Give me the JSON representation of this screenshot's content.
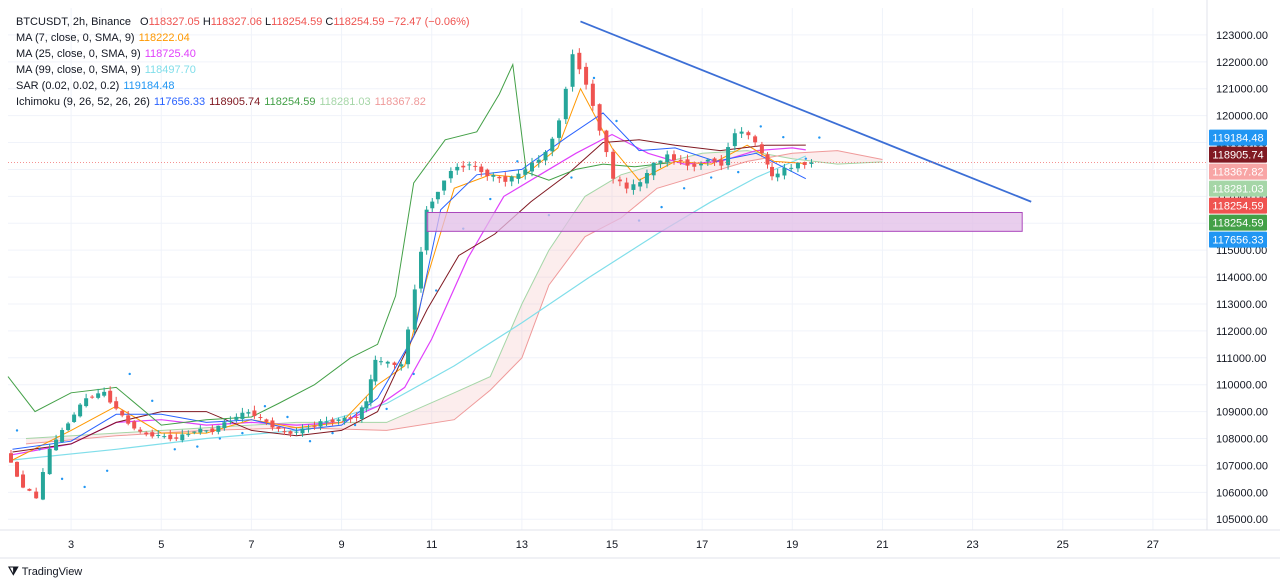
{
  "legend": {
    "symbol_line": {
      "symbol": "BTCUSDT, 2h, Binance",
      "o_label": "O",
      "o": "118327.05",
      "h_label": "H",
      "h": "118327.06",
      "l_label": "L",
      "l": "118254.59",
      "c_label": "C",
      "c": "118254.59",
      "change": "−72.47 (−0.06%)"
    },
    "indicators": [
      {
        "label": "MA (7, close, 0, SMA, 9)",
        "values": [
          "118222.04"
        ],
        "colors": [
          "#ff9800"
        ]
      },
      {
        "label": "MA (25, close, 0, SMA, 9)",
        "values": [
          "118725.40"
        ],
        "colors": [
          "#e040fb"
        ]
      },
      {
        "label": "MA (99, close, 0, SMA, 9)",
        "values": [
          "118497.70"
        ],
        "colors": [
          "#80deea"
        ]
      },
      {
        "label": "SAR (0.02, 0.02, 0.2)",
        "values": [
          "119184.48"
        ],
        "colors": [
          "#2196f3"
        ]
      },
      {
        "label": "Ichimoku (9, 26, 52, 26, 26)",
        "values": [
          "117656.33",
          "118905.74",
          "118254.59",
          "118281.03",
          "118367.82"
        ],
        "colors": [
          "#2962ff",
          "#801922",
          "#43a047",
          "#a5d6a7",
          "#ef9a9a"
        ]
      }
    ]
  },
  "footer": {
    "brand": "TradingView",
    "icon": "tradingview-logo-icon"
  },
  "colors": {
    "up": "#26a69a",
    "down": "#ef5350",
    "trendline": "#3c6fd6",
    "zone_fill": "#e1bee7",
    "zone_stroke": "#ab47bc"
  },
  "chart_data": {
    "type": "candlestick",
    "title": "BTCUSDT, 2h, Binance",
    "xlabel": "",
    "ylabel": "",
    "x_ticks": [
      "3",
      "5",
      "7",
      "9",
      "11",
      "13",
      "15",
      "17",
      "19",
      "21",
      "23",
      "25",
      "27"
    ],
    "y_ticks": [
      "105000.00",
      "106000.00",
      "107000.00",
      "108000.00",
      "109000.00",
      "110000.00",
      "111000.00",
      "112000.00",
      "113000.00",
      "114000.00",
      "115000.00",
      "116000.00",
      "117000.00",
      "118000.00",
      "119000.00",
      "120000.00",
      "121000.00",
      "122000.00",
      "123000.00"
    ],
    "ylim": [
      104600,
      124000
    ],
    "xlim": [
      1.6,
      28.2
    ],
    "price_labels": [
      {
        "value": "119184.48",
        "price": 119184.48,
        "color": "#2196f3"
      },
      {
        "value": "118905.74",
        "price": 118905.74,
        "color": "#801922"
      },
      {
        "value": "118367.82",
        "price": 118367.82,
        "color": "#f8a5a5"
      },
      {
        "value": "118281.03",
        "price": 118281.03,
        "color": "#a5d6a7"
      },
      {
        "value": "118254.59",
        "price": 118254.59,
        "color": "#ef5350"
      },
      {
        "value": "118254.59",
        "price": 118254.59,
        "color": "#43a047"
      },
      {
        "value": "117656.33",
        "price": 117656.33,
        "color": "#2196f3"
      }
    ],
    "trendline": {
      "x1": 14.3,
      "y1": 123500,
      "x2": 24.3,
      "y2": 116800
    },
    "zone": {
      "x1": 10.9,
      "x2": 24.1,
      "y_top": 116400,
      "y_bottom": 115700
    },
    "price_series": [
      [
        1.6,
        107500
      ],
      [
        2.0,
        106200
      ],
      [
        2.3,
        105800
      ],
      [
        2.6,
        107600
      ],
      [
        3.0,
        108600
      ],
      [
        3.4,
        109500
      ],
      [
        3.8,
        109700
      ],
      [
        4.2,
        108800
      ],
      [
        4.6,
        108200
      ],
      [
        5.0,
        108100
      ],
      [
        5.4,
        108000
      ],
      [
        5.8,
        108300
      ],
      [
        6.2,
        108300
      ],
      [
        6.6,
        108700
      ],
      [
        7.0,
        109000
      ],
      [
        7.4,
        108600
      ],
      [
        7.8,
        108200
      ],
      [
        8.2,
        108300
      ],
      [
        8.6,
        108600
      ],
      [
        9.0,
        108700
      ],
      [
        9.4,
        108800
      ],
      [
        9.6,
        109400
      ],
      [
        9.8,
        110900
      ],
      [
        10.1,
        110800
      ],
      [
        10.4,
        110700
      ],
      [
        10.7,
        113500
      ],
      [
        10.95,
        116500
      ],
      [
        11.2,
        117200
      ],
      [
        11.5,
        118000
      ],
      [
        11.9,
        118200
      ],
      [
        12.3,
        117800
      ],
      [
        12.7,
        117600
      ],
      [
        13.0,
        117800
      ],
      [
        13.3,
        118200
      ],
      [
        13.6,
        118600
      ],
      [
        13.9,
        119800
      ],
      [
        14.2,
        122300
      ],
      [
        14.5,
        121200
      ],
      [
        14.8,
        119500
      ],
      [
        15.1,
        117700
      ],
      [
        15.4,
        117300
      ],
      [
        15.7,
        117500
      ],
      [
        16.0,
        118200
      ],
      [
        16.3,
        118500
      ],
      [
        16.6,
        118300
      ],
      [
        16.9,
        118100
      ],
      [
        17.2,
        118400
      ],
      [
        17.5,
        118200
      ],
      [
        17.8,
        119400
      ],
      [
        18.1,
        119300
      ],
      [
        18.4,
        118600
      ],
      [
        18.6,
        117700
      ],
      [
        18.9,
        118000
      ],
      [
        19.2,
        118200
      ],
      [
        19.5,
        118250
      ]
    ],
    "ma7": [
      [
        1.7,
        107200
      ],
      [
        3.0,
        108300
      ],
      [
        4.0,
        109200
      ],
      [
        5.0,
        108200
      ],
      [
        6.0,
        108200
      ],
      [
        7.0,
        108700
      ],
      [
        8.0,
        108400
      ],
      [
        9.0,
        108600
      ],
      [
        9.8,
        110000
      ],
      [
        10.4,
        110700
      ],
      [
        10.9,
        114000
      ],
      [
        11.5,
        117300
      ],
      [
        12.3,
        117800
      ],
      [
        13.0,
        117700
      ],
      [
        13.8,
        118800
      ],
      [
        14.3,
        121000
      ],
      [
        15.0,
        118800
      ],
      [
        15.6,
        117600
      ],
      [
        16.4,
        118300
      ],
      [
        17.2,
        118200
      ],
      [
        18.0,
        118900
      ],
      [
        18.6,
        118300
      ],
      [
        19.3,
        118220
      ]
    ],
    "ma25": [
      [
        1.7,
        107400
      ],
      [
        3.0,
        107800
      ],
      [
        4.0,
        108600
      ],
      [
        5.0,
        108700
      ],
      [
        6.0,
        108500
      ],
      [
        7.0,
        108600
      ],
      [
        8.0,
        108500
      ],
      [
        9.0,
        108600
      ],
      [
        9.8,
        109200
      ],
      [
        10.4,
        109900
      ],
      [
        11.0,
        111700
      ],
      [
        11.8,
        114700
      ],
      [
        12.6,
        117000
      ],
      [
        13.4,
        117800
      ],
      [
        14.2,
        118600
      ],
      [
        15.0,
        119300
      ],
      [
        15.8,
        118600
      ],
      [
        16.6,
        118200
      ],
      [
        17.4,
        118300
      ],
      [
        18.2,
        118700
      ],
      [
        19.0,
        118800
      ],
      [
        19.3,
        118725
      ]
    ],
    "ma99": [
      [
        1.7,
        107200
      ],
      [
        4.0,
        107600
      ],
      [
        6.0,
        108000
      ],
      [
        8.0,
        108300
      ],
      [
        10.0,
        109300
      ],
      [
        11.5,
        110700
      ],
      [
        13.0,
        112300
      ],
      [
        14.5,
        114000
      ],
      [
        16.0,
        115600
      ],
      [
        17.2,
        116800
      ],
      [
        18.2,
        117700
      ],
      [
        19.3,
        118500
      ]
    ],
    "ichimoku_conversion": [
      [
        1.7,
        107600
      ],
      [
        3.0,
        107900
      ],
      [
        4.0,
        108900
      ],
      [
        5.0,
        108900
      ],
      [
        6.0,
        108600
      ],
      [
        7.0,
        108700
      ],
      [
        8.0,
        108300
      ],
      [
        9.0,
        108500
      ],
      [
        9.8,
        109500
      ],
      [
        10.6,
        111800
      ],
      [
        11.2,
        116500
      ],
      [
        12.0,
        117800
      ],
      [
        13.0,
        118000
      ],
      [
        14.0,
        119200
      ],
      [
        14.8,
        120100
      ],
      [
        15.6,
        118700
      ],
      [
        16.4,
        118800
      ],
      [
        17.3,
        118300
      ],
      [
        18.2,
        118600
      ],
      [
        19.3,
        117656
      ]
    ],
    "ichimoku_base": [
      [
        1.7,
        107500
      ],
      [
        3.0,
        107800
      ],
      [
        4.0,
        108600
      ],
      [
        5.0,
        109000
      ],
      [
        6.0,
        109000
      ],
      [
        7.0,
        108300
      ],
      [
        8.0,
        108100
      ],
      [
        9.0,
        108300
      ],
      [
        9.8,
        109000
      ],
      [
        10.3,
        110800
      ],
      [
        10.9,
        112800
      ],
      [
        11.6,
        114800
      ],
      [
        12.4,
        115600
      ],
      [
        13.2,
        116800
      ],
      [
        14.0,
        117800
      ],
      [
        14.8,
        119000
      ],
      [
        15.6,
        119100
      ],
      [
        16.4,
        118900
      ],
      [
        17.4,
        118700
      ],
      [
        18.4,
        118900
      ],
      [
        19.3,
        118905
      ]
    ],
    "ichimoku_lagging": [
      [
        1.6,
        110300
      ],
      [
        2.2,
        109000
      ],
      [
        3.0,
        109700
      ],
      [
        4.0,
        109900
      ],
      [
        5.0,
        108500
      ],
      [
        6.0,
        108700
      ],
      [
        7.0,
        108800
      ],
      [
        7.6,
        109300
      ],
      [
        8.4,
        110000
      ],
      [
        9.2,
        111000
      ],
      [
        9.8,
        111500
      ],
      [
        10.2,
        113300
      ],
      [
        10.6,
        117500
      ],
      [
        11.3,
        119100
      ],
      [
        12.0,
        119400
      ],
      [
        12.5,
        120800
      ],
      [
        12.8,
        121900
      ],
      [
        13.1,
        117900
      ],
      [
        13.6,
        117600
      ],
      [
        14.2,
        118000
      ],
      [
        14.8,
        118200
      ],
      [
        15.5,
        118100
      ],
      [
        16.3,
        118254
      ]
    ],
    "ichimoku_span_a": [
      [
        2.0,
        108000
      ],
      [
        4.0,
        108200
      ],
      [
        6.0,
        108400
      ],
      [
        8.0,
        108600
      ],
      [
        10.0,
        108600
      ],
      [
        11.5,
        109700
      ],
      [
        12.3,
        110300
      ],
      [
        13.0,
        113000
      ],
      [
        13.6,
        115000
      ],
      [
        14.4,
        117000
      ],
      [
        15.2,
        117800
      ],
      [
        16.0,
        118200
      ],
      [
        17.0,
        118600
      ],
      [
        18.0,
        118700
      ],
      [
        19.0,
        118400
      ],
      [
        20.0,
        118200
      ],
      [
        21.0,
        118281
      ]
    ],
    "ichimoku_span_b": [
      [
        2.0,
        107800
      ],
      [
        4.0,
        108100
      ],
      [
        6.0,
        108300
      ],
      [
        8.0,
        108400
      ],
      [
        10.0,
        108300
      ],
      [
        11.5,
        108700
      ],
      [
        12.3,
        109800
      ],
      [
        13.0,
        111000
      ],
      [
        13.6,
        113700
      ],
      [
        14.4,
        115500
      ],
      [
        15.2,
        116200
      ],
      [
        16.0,
        117300
      ],
      [
        17.0,
        117800
      ],
      [
        18.0,
        118300
      ],
      [
        19.0,
        118600
      ],
      [
        20.0,
        118700
      ],
      [
        21.0,
        118368
      ]
    ],
    "sar_points": [
      [
        1.8,
        108300
      ],
      [
        2.3,
        107600
      ],
      [
        2.8,
        106500
      ],
      [
        3.3,
        106200
      ],
      [
        3.8,
        106800
      ],
      [
        4.3,
        110400
      ],
      [
        4.8,
        109400
      ],
      [
        5.3,
        107600
      ],
      [
        5.8,
        107700
      ],
      [
        6.3,
        108000
      ],
      [
        6.8,
        108200
      ],
      [
        7.3,
        109200
      ],
      [
        7.8,
        108800
      ],
      [
        8.3,
        107900
      ],
      [
        8.8,
        108200
      ],
      [
        9.3,
        108500
      ],
      [
        10.0,
        109100
      ],
      [
        10.6,
        110400
      ],
      [
        11.1,
        113500
      ],
      [
        11.7,
        115800
      ],
      [
        12.3,
        116900
      ],
      [
        12.9,
        118300
      ],
      [
        13.6,
        116300
      ],
      [
        14.1,
        117700
      ],
      [
        14.6,
        121400
      ],
      [
        15.1,
        119800
      ],
      [
        15.6,
        116100
      ],
      [
        16.1,
        116600
      ],
      [
        16.6,
        117300
      ],
      [
        17.2,
        117700
      ],
      [
        17.8,
        117900
      ],
      [
        18.3,
        119600
      ],
      [
        18.8,
        119200
      ],
      [
        19.3,
        118400
      ],
      [
        19.6,
        119184
      ]
    ]
  }
}
